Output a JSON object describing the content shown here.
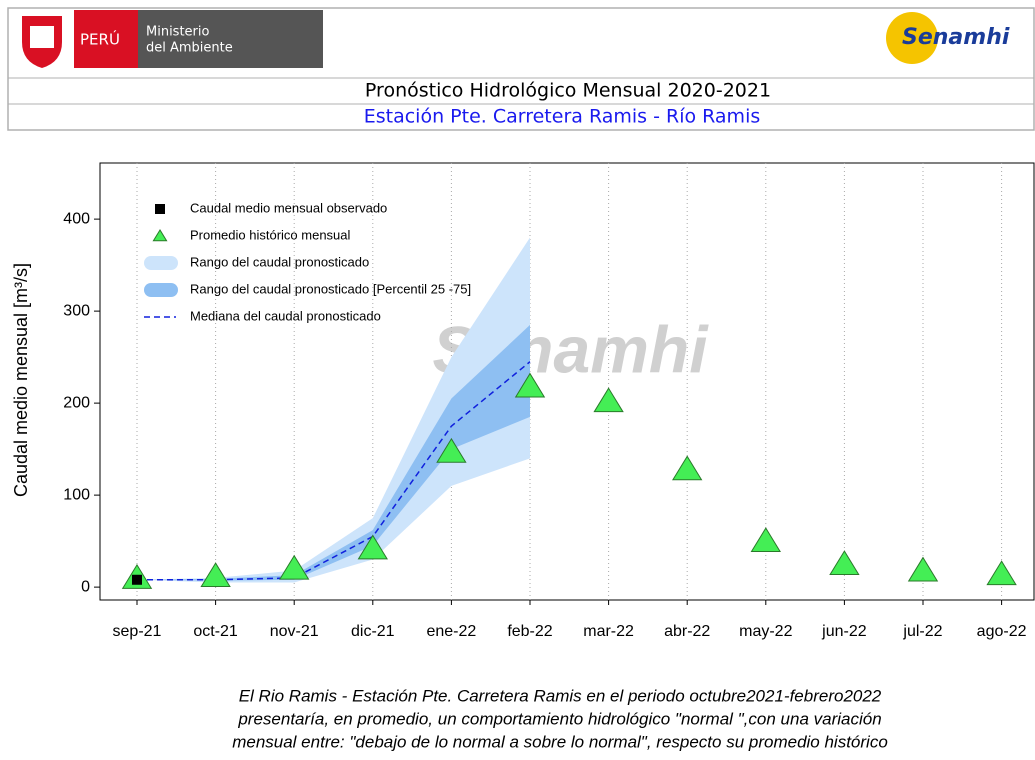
{
  "header": {
    "country": "PERÚ",
    "ministry_line1": "Ministerio",
    "ministry_line2": "del Ambiente",
    "agency": "Senamhi"
  },
  "chart_data": {
    "type": "line",
    "title": "Pronóstico Hidrológico Mensual 2020-2021",
    "subtitle": "Estación Pte. Carretera Ramis - Río Ramis",
    "ylabel": "Caudal medio mensual  [m³/s]",
    "watermark": "Senamhi",
    "categories": [
      "sep-21",
      "oct-21",
      "nov-21",
      "dic-21",
      "ene-22",
      "feb-22",
      "mar-22",
      "abr-22",
      "may-22",
      "jun-22",
      "jul-22",
      "ago-22"
    ],
    "ylim": [
      -14,
      461
    ],
    "yticks": [
      0,
      100,
      200,
      300,
      400
    ],
    "grid": true,
    "legend": "upper left",
    "series": [
      {
        "name": "Caudal medio mensual observado",
        "kind": "square",
        "color": "#000000",
        "values": [
          8,
          null,
          null,
          null,
          null,
          null,
          null,
          null,
          null,
          null,
          null,
          null
        ]
      },
      {
        "name": "Promedio histórico mensual",
        "kind": "triangle",
        "color": "#44ee55",
        "values": [
          10,
          12,
          20,
          42,
          147,
          218,
          202,
          128,
          50,
          25,
          18,
          14
        ]
      },
      {
        "name": "Rango del caudal pronosticado",
        "kind": "band",
        "color": "#cde4fb",
        "low": [
          8,
          5,
          5,
          30,
          110,
          140,
          null,
          null,
          null,
          null,
          null,
          null
        ],
        "high": [
          8,
          10,
          18,
          75,
          250,
          380,
          null,
          null,
          null,
          null,
          null,
          null
        ]
      },
      {
        "name": "Rango del caudal pronosticado [Percentil 25 -75]",
        "kind": "band",
        "color": "#8ebff2",
        "low": [
          8,
          7,
          8,
          45,
          150,
          185,
          null,
          null,
          null,
          null,
          null,
          null
        ],
        "high": [
          8,
          9,
          13,
          62,
          205,
          285,
          null,
          null,
          null,
          null,
          null,
          null
        ]
      },
      {
        "name": "Mediana del caudal pronosticado",
        "kind": "dashed",
        "color": "#1020dd",
        "values": [
          8,
          8,
          10,
          55,
          175,
          245,
          null,
          null,
          null,
          null,
          null,
          null
        ]
      }
    ],
    "caption": [
      "El Rio Ramis - Estación Pte. Carretera Ramis en el periodo octubre2021-febrero2022",
      "presentaría, en promedio, un comportamiento hidrológico \"normal \",con una variación",
      "mensual entre: \"debajo de lo normal a sobre lo normal\", respecto su promedio histórico"
    ]
  }
}
